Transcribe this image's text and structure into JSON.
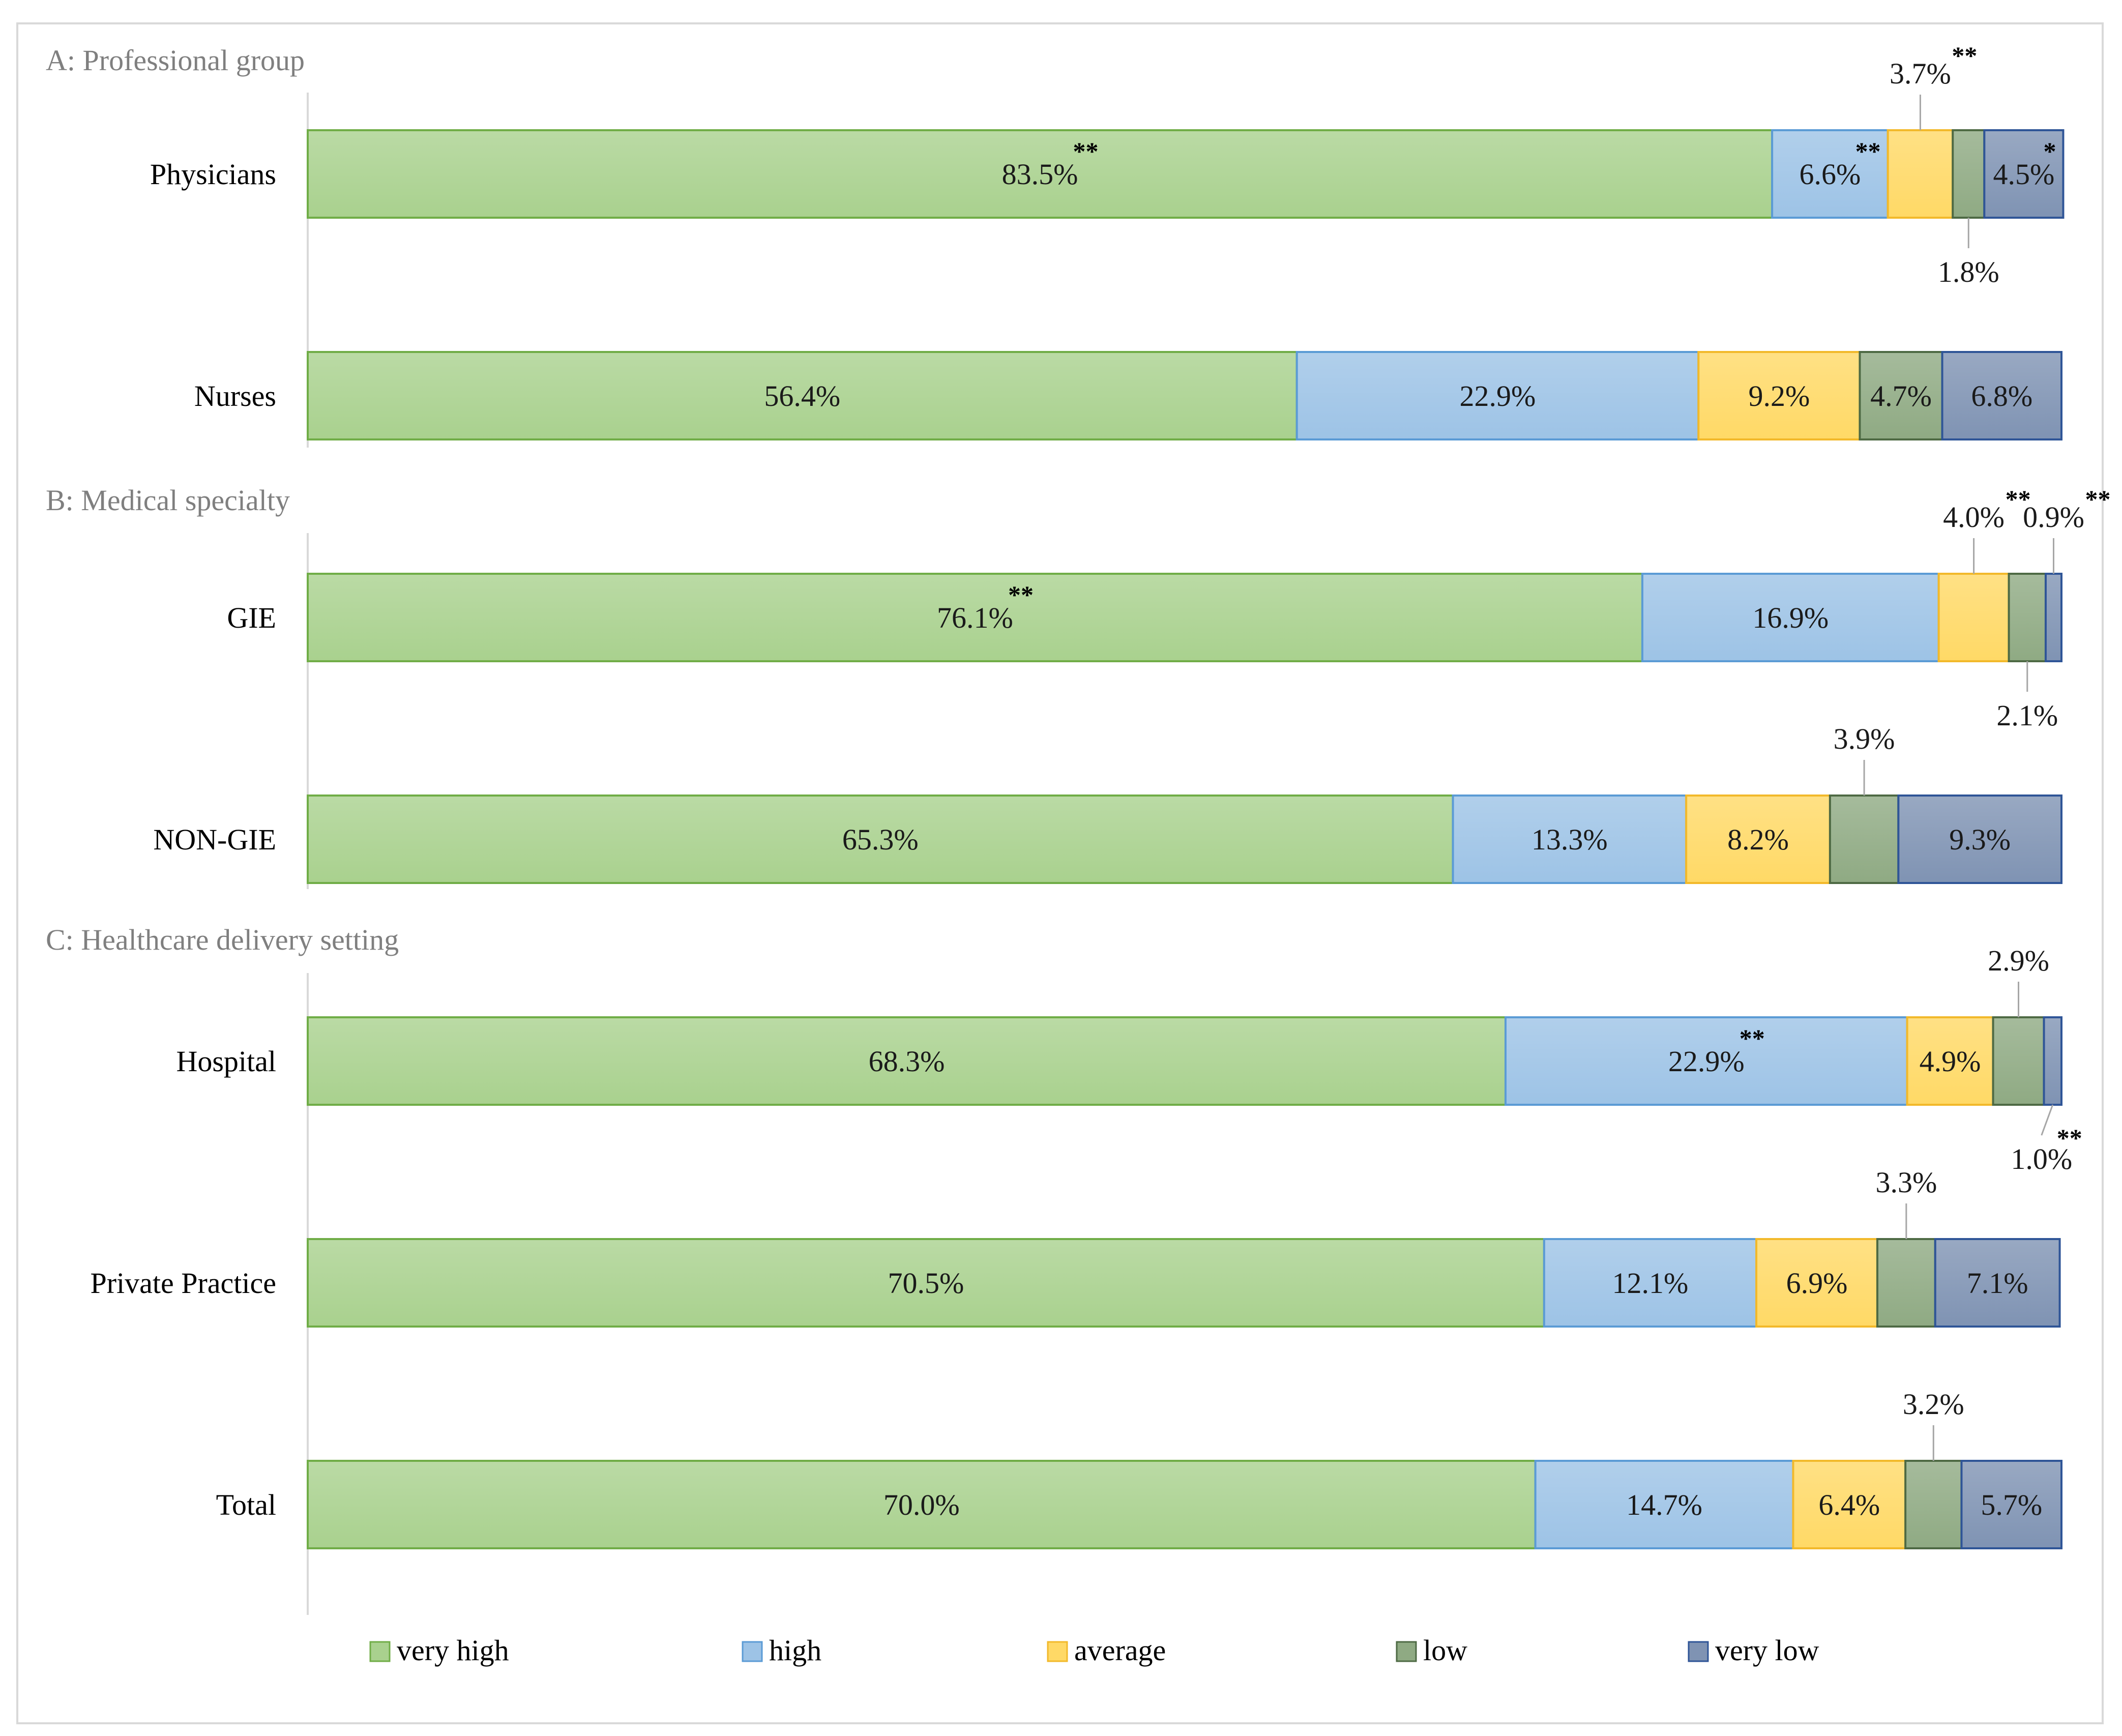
{
  "chart_data": {
    "type": "bar",
    "orientation": "horizontal-stacked",
    "unit": "%",
    "series_names": [
      "very high",
      "high",
      "average",
      "low",
      "very low"
    ],
    "colors": {
      "very high": "#a9d18e",
      "high": "#9dc3e6",
      "average": "#ffd966",
      "low": "#8faa83",
      "very low": "#7f93b3"
    },
    "xlim": [
      0,
      100
    ],
    "sections": [
      {
        "title": "A: Professional group",
        "rows": [
          {
            "label": "Physicians",
            "values": [
              83.5,
              6.6,
              3.7,
              1.8,
              4.5
            ],
            "labels": [
              "83.5%",
              "6.6%",
              "3.7%",
              "1.8%",
              "4.5%"
            ],
            "stars": [
              "**",
              "**",
              "**",
              "",
              "*"
            ]
          },
          {
            "label": "Nurses",
            "values": [
              56.4,
              22.9,
              9.2,
              4.7,
              6.8
            ],
            "labels": [
              "56.4%",
              "22.9%",
              "9.2%",
              "4.7%",
              "6.8%"
            ],
            "stars": [
              "",
              "",
              "",
              "",
              ""
            ]
          }
        ]
      },
      {
        "title": "B: Medical specialty",
        "rows": [
          {
            "label": "GIE",
            "values": [
              76.1,
              16.9,
              4.0,
              2.1,
              0.9
            ],
            "labels": [
              "76.1%",
              "16.9%",
              "4.0%",
              "2.1%",
              "0.9%"
            ],
            "stars": [
              "**",
              "",
              "**",
              "",
              "**"
            ]
          },
          {
            "label": "NON-GIE",
            "values": [
              65.3,
              13.3,
              8.2,
              3.9,
              9.3
            ],
            "labels": [
              "65.3%",
              "13.3%",
              "8.2%",
              "3.9%",
              "9.3%"
            ],
            "stars": [
              "",
              "",
              "",
              "",
              ""
            ]
          }
        ]
      },
      {
        "title": "C: Healthcare delivery setting",
        "rows": [
          {
            "label": "Hospital",
            "values": [
              68.3,
              22.9,
              4.9,
              2.9,
              1.0
            ],
            "labels": [
              "68.3%",
              "22.9%",
              "4.9%",
              "2.9%",
              "1.0%"
            ],
            "stars": [
              "",
              "**",
              "",
              "",
              "**"
            ]
          },
          {
            "label": "Private Practice",
            "values": [
              70.5,
              12.1,
              6.9,
              3.3,
              7.1
            ],
            "labels": [
              "70.5%",
              "12.1%",
              "6.9%",
              "3.3%",
              "7.1%"
            ],
            "stars": [
              "",
              "",
              "",
              "",
              ""
            ]
          },
          {
            "label": "Total",
            "values": [
              70.0,
              14.7,
              6.4,
              3.2,
              5.7
            ],
            "labels": [
              "70.0%",
              "14.7%",
              "6.4%",
              "3.2%",
              "5.7%"
            ],
            "stars": [
              "",
              "",
              "",
              "",
              ""
            ]
          }
        ]
      }
    ],
    "legend": [
      "very high",
      "high",
      "average",
      "low",
      "very low"
    ],
    "legend_position": "bottom"
  }
}
